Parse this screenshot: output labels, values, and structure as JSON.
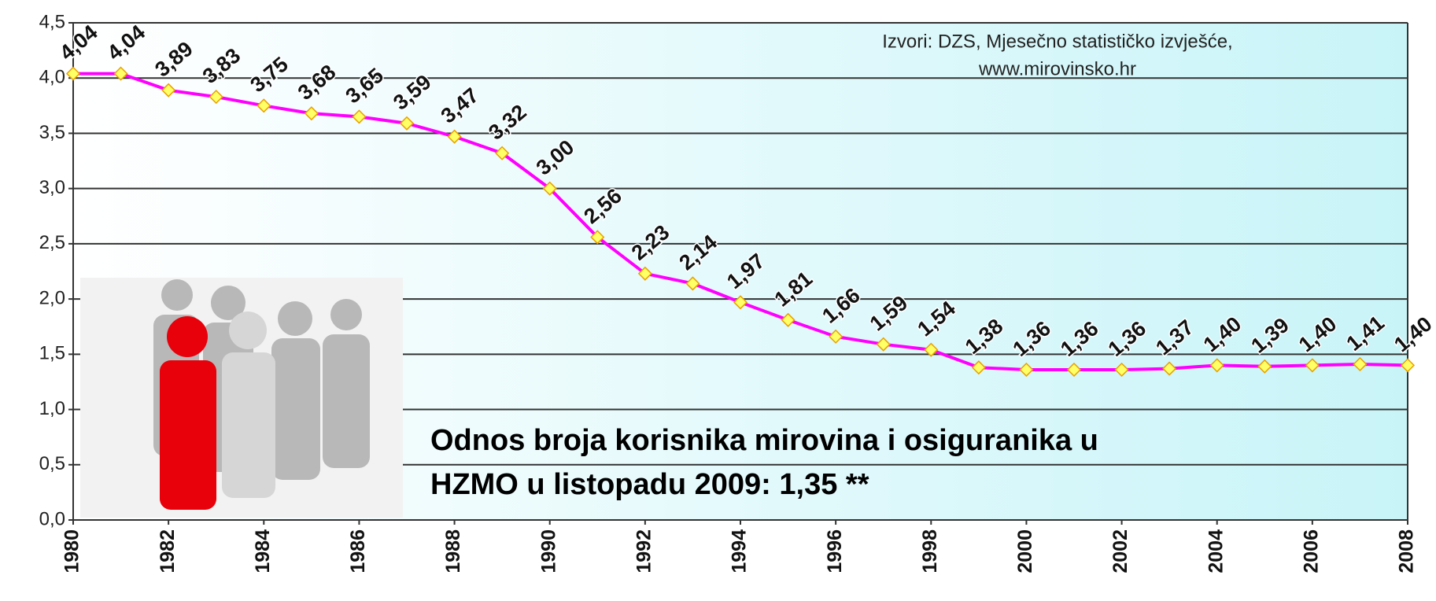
{
  "chart_data": {
    "type": "line",
    "x": [
      1980,
      1981,
      1982,
      1983,
      1984,
      1985,
      1986,
      1987,
      1988,
      1989,
      1990,
      1991,
      1992,
      1993,
      1994,
      1995,
      1996,
      1997,
      1998,
      1999,
      2000,
      2001,
      2002,
      2003,
      2004,
      2005,
      2006,
      2007,
      2008
    ],
    "series": [
      {
        "color": "#ff00ff",
        "marker_color": "#ffff66",
        "values": [
          4.04,
          4.04,
          3.89,
          3.83,
          3.75,
          3.68,
          3.65,
          3.59,
          3.47,
          3.32,
          3.0,
          2.56,
          2.23,
          2.14,
          1.97,
          1.81,
          1.66,
          1.59,
          1.54,
          1.38,
          1.36,
          1.36,
          1.36,
          1.37,
          1.4,
          1.39,
          1.4,
          1.41,
          1.4
        ],
        "value_labels": [
          "4,04",
          "4,04",
          "3,89",
          "3,83",
          "3,75",
          "3,68",
          "3,65",
          "3,59",
          "3,47",
          "3,32",
          "3,00",
          "2,56",
          "2,23",
          "2,14",
          "1,97",
          "1,81",
          "1,66",
          "1,59",
          "1,54",
          "1,38",
          "1,36",
          "1,36",
          "1,36",
          "1,37",
          "1,40",
          "1,39",
          "1,40",
          "1,41",
          "1,40"
        ]
      }
    ],
    "xlim": [
      1980,
      2008
    ],
    "xticks": [
      1980,
      1982,
      1984,
      1986,
      1988,
      1990,
      1992,
      1994,
      1996,
      1998,
      2000,
      2002,
      2004,
      2006,
      2008
    ],
    "ylim": [
      0,
      4.5
    ],
    "yticks": [
      {
        "value": 0,
        "label": "0,0"
      },
      {
        "value": 0.5,
        "label": "0,5"
      },
      {
        "value": 1,
        "label": "1,0"
      },
      {
        "value": 1.5,
        "label": "1,5"
      },
      {
        "value": 2,
        "label": "2,0"
      },
      {
        "value": 2.5,
        "label": "2,5"
      },
      {
        "value": 3,
        "label": "3,0"
      },
      {
        "value": 3.5,
        "label": "3,5"
      },
      {
        "value": 4,
        "label": "4,0"
      },
      {
        "value": 4.5,
        "label": "4,5"
      }
    ],
    "grid": true,
    "source": [
      "Izvori: DZS, Mjesečno statističko izvješće,",
      "www.mirovinsko.hr"
    ],
    "annotation": [
      "Odnos broja korisnika mirovina i osiguranika u",
      "HZMO u listopadu 2009: 1,35 **"
    ]
  }
}
